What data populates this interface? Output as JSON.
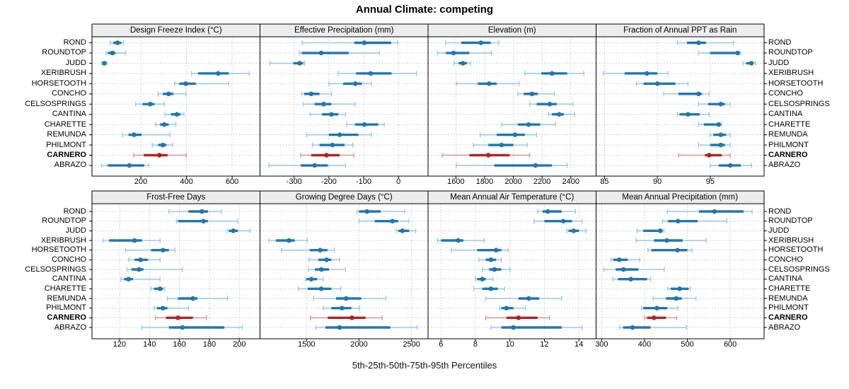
{
  "title": "Annual Climate: competing",
  "caption": "5th-25th-50th-75th-95th Percentiles",
  "colors": {
    "blue": "#1f77b4",
    "blue_light": "#9ec9e2",
    "red": "#b22222",
    "red_light": "#dc9c96",
    "panel_header_bg": "#ececec",
    "panel_border": "#000000",
    "grid": "#c9c9c9",
    "text": "#000000"
  },
  "sites": [
    "ROND",
    "ROUNDTOP",
    "JUDD",
    "XERIBRUSH",
    "HORSETOOTH",
    "CONCHO",
    "CELSOSPRINGS",
    "CANTINA",
    "CHARETTE",
    "REMUNDA",
    "PHILMONT",
    "CARNERO",
    "ABRAZO"
  ],
  "highlight_site": "CARNERO",
  "chart_data": {
    "type": "segplot-percentiles",
    "title": "Annual Climate: competing",
    "percentile_labels": [
      "5th",
      "25th",
      "50th",
      "75th",
      "95th"
    ],
    "legend": "none",
    "grid": "dotted",
    "panels": [
      {
        "title": "Design Freeze Index (°C)",
        "row": 0,
        "col": 0,
        "xlim": [
          -14,
          722
        ],
        "ticks": [
          200,
          400,
          600
        ],
        "values": {
          "ROND": [
            67,
            79,
            98,
            115,
            124
          ],
          "ROUNDTOP": [
            48,
            55,
            75,
            89,
            133
          ],
          "JUDD": [
            29,
            34,
            40,
            47,
            52
          ],
          "XERIBRUSH": [
            422,
            451,
            539,
            585,
            675
          ],
          "HORSETOOTH": [
            348,
            368,
            397,
            441,
            585
          ],
          "CONCHO": [
            275,
            296,
            322,
            343,
            399
          ],
          "CELSOSPRINGS": [
            177,
            208,
            241,
            260,
            303
          ],
          "CANTINA": [
            306,
            332,
            358,
            374,
            389
          ],
          "CHARETTE": [
            265,
            284,
            303,
            322,
            353
          ],
          "REMUNDA": [
            120,
            146,
            170,
            203,
            327
          ],
          "PHILMONT": [
            250,
            275,
            296,
            312,
            340
          ],
          "CARNERO": [
            169,
            213,
            281,
            317,
            399
          ],
          "ABRAZO": [
            28,
            55,
            150,
            215,
            235
          ]
        }
      },
      {
        "title": "Effective Precipitation (mm)",
        "row": 0,
        "col": 1,
        "xlim": [
          -398,
          85
        ],
        "ticks": [
          -300,
          -200,
          -100,
          0
        ],
        "values": {
          "ROND": [
            -277,
            -127,
            -98,
            -21,
            -3
          ],
          "ROUNDTOP": [
            -285,
            -278,
            -222,
            -143,
            -55
          ],
          "JUDD": [
            -369,
            -302,
            -284,
            -274,
            -270
          ],
          "XERIBRUSH": [
            -173,
            -122,
            -80,
            -20,
            52
          ],
          "HORSETOOTH": [
            -200,
            -159,
            -124,
            -105,
            -78
          ],
          "CONCHO": [
            -278,
            -271,
            -251,
            -227,
            -193
          ],
          "CELSOSPRINGS": [
            -274,
            -241,
            -215,
            -193,
            -125
          ],
          "CANTINA": [
            -254,
            -220,
            -193,
            -173,
            -152
          ],
          "CHARETTE": [
            -149,
            -125,
            -98,
            -58,
            -41
          ],
          "REMUNDA": [
            -264,
            -200,
            -169,
            -115,
            -78
          ],
          "PHILMONT": [
            -247,
            -227,
            -190,
            -155,
            -131
          ],
          "CARNERO": [
            -281,
            -251,
            -207,
            -169,
            -128
          ],
          "ABRAZO": [
            -372,
            -281,
            -241,
            -203,
            -152
          ]
        }
      },
      {
        "title": "Elevation (m)",
        "row": 0,
        "col": 2,
        "xlim": [
          1406,
          2576
        ],
        "ticks": [
          1600,
          1800,
          2000,
          2200,
          2400
        ],
        "values": {
          "ROND": [
            1528,
            1637,
            1775,
            1842,
            1898
          ],
          "ROUNDTOP": [
            1472,
            1530,
            1583,
            1694,
            1848
          ],
          "JUDD": [
            1586,
            1619,
            1649,
            1677,
            1702
          ],
          "XERIBRUSH": [
            2080,
            2195,
            2269,
            2375,
            2490
          ],
          "HORSETOOTH": [
            1603,
            1752,
            1831,
            1884,
            2039
          ],
          "CONCHO": [
            2031,
            2072,
            2130,
            2170,
            2286
          ],
          "CELSOSPRINGS": [
            2113,
            2162,
            2253,
            2302,
            2417
          ],
          "CANTINA": [
            2246,
            2269,
            2319,
            2352,
            2426
          ],
          "CHARETTE": [
            1918,
            2031,
            2106,
            2187,
            2294
          ],
          "REMUNDA": [
            1770,
            1884,
            2012,
            2080,
            2162
          ],
          "PHILMONT": [
            1721,
            1826,
            1918,
            2000,
            2096
          ],
          "CARNERO": [
            1505,
            1694,
            1826,
            1975,
            2113
          ],
          "ABRAZO": [
            1603,
            1867,
            2154,
            2269,
            2375
          ]
        }
      },
      {
        "title": "Fraction of Annual PPT as Rain",
        "row": 0,
        "col": 3,
        "xlim": [
          84.2,
          100.1
        ],
        "ticks": [
          85,
          90,
          95
        ],
        "values": {
          "ROND": [
            91.9,
            92.8,
            93.9,
            94.6,
            97.2
          ],
          "ROUNDTOP": [
            93.9,
            95.0,
            97.6,
            97.8,
            97.9
          ],
          "JUDD": [
            98.1,
            98.4,
            98.9,
            99.1,
            99.3
          ],
          "XERIBRUSH": [
            84.9,
            86.9,
            89.0,
            90.0,
            91.0
          ],
          "HORSETOOTH": [
            88.0,
            88.7,
            90.0,
            91.7,
            92.9
          ],
          "CONCHO": [
            90.6,
            92.0,
            93.9,
            94.2,
            94.9
          ],
          "CELSOSPRINGS": [
            93.9,
            94.8,
            96.0,
            96.4,
            96.9
          ],
          "CANTINA": [
            91.9,
            92.1,
            92.9,
            94.0,
            94.9
          ],
          "CHARETTE": [
            93.9,
            94.4,
            95.8,
            96.0,
            96.1
          ],
          "REMUNDA": [
            95.0,
            95.3,
            96.0,
            96.5,
            96.9
          ],
          "PHILMONT": [
            93.9,
            95.0,
            96.0,
            96.4,
            96.9
          ],
          "CARNERO": [
            92.0,
            94.5,
            94.9,
            96.1,
            96.9
          ],
          "ABRAZO": [
            95.0,
            95.8,
            96.9,
            97.9,
            98.9
          ]
        }
      },
      {
        "title": "Frost-Free Days",
        "row": 1,
        "col": 0,
        "xlim": [
          101.6,
          213.8
        ],
        "ticks": [
          120,
          140,
          160,
          180,
          200
        ],
        "values": {
          "ROND": [
            153,
            166,
            175,
            179,
            188
          ],
          "ROUNDTOP": [
            158,
            159,
            176,
            179,
            199
          ],
          "JUDD": [
            192,
            193,
            196,
            199,
            207
          ],
          "XERIBRUSH": [
            109,
            113,
            130,
            135,
            147
          ],
          "HORSETOOTH": [
            124,
            141,
            149,
            153,
            157
          ],
          "CONCHO": [
            126,
            130,
            134,
            139,
            147
          ],
          "CELSOSPRINGS": [
            125,
            128,
            133,
            136,
            162
          ],
          "CANTINA": [
            121,
            123,
            126,
            129,
            147
          ],
          "CHARETTE": [
            141,
            143,
            147,
            149,
            150
          ],
          "REMUNDA": [
            152,
            159,
            169,
            172,
            192
          ],
          "PHILMONT": [
            143,
            145,
            149,
            152,
            166
          ],
          "CARNERO": [
            144,
            151,
            159,
            169,
            178
          ],
          "ABRAZO": [
            135,
            153,
            162,
            190,
            202
          ]
        }
      },
      {
        "title": "Growing Degree Days (°C)",
        "row": 1,
        "col": 1,
        "xlim": [
          1057,
          2657
        ],
        "ticks": [
          1500,
          2000,
          2500
        ],
        "values": {
          "ROND": [
            1982,
            2000,
            2076,
            2206,
            2436
          ],
          "ROUNDTOP": [
            2000,
            2150,
            2319,
            2374,
            2472
          ],
          "JUDD": [
            2353,
            2374,
            2414,
            2477,
            2539
          ],
          "XERIBRUSH": [
            1141,
            1208,
            1332,
            1388,
            1507
          ],
          "HORSETOOTH": [
            1260,
            1530,
            1630,
            1698,
            1765
          ],
          "CONCHO": [
            1523,
            1613,
            1691,
            1736,
            1815
          ],
          "CELSOSPRINGS": [
            1518,
            1579,
            1642,
            1714,
            1871
          ],
          "CANTINA": [
            1489,
            1500,
            1545,
            1601,
            1658
          ],
          "CHARETTE": [
            1422,
            1511,
            1640,
            1736,
            1826
          ],
          "REMUNDA": [
            1567,
            1781,
            1877,
            2021,
            2257
          ],
          "PHILMONT": [
            1658,
            1736,
            1837,
            1927,
            2005
          ],
          "CARNERO": [
            1538,
            1702,
            1932,
            2062,
            2219
          ],
          "ABRAZO": [
            1590,
            1680,
            1815,
            2298,
            2554
          ]
        }
      },
      {
        "title": "Mean Annual Air Temperature (°C)",
        "row": 1,
        "col": 2,
        "xlim": [
          5.25,
          15.0
        ],
        "ticks": [
          6,
          8,
          10,
          12,
          14
        ],
        "values": {
          "ROND": [
            11.6,
            11.9,
            12.2,
            13.0,
            13.8
          ],
          "ROUNDTOP": [
            11.4,
            12.0,
            13.1,
            13.6,
            14.2
          ],
          "JUDD": [
            13.3,
            13.4,
            13.7,
            14.0,
            14.4
          ],
          "XERIBRUSH": [
            5.8,
            6.0,
            7.0,
            7.3,
            8.5
          ],
          "HORSETOOTH": [
            6.6,
            8.1,
            9.2,
            9.5,
            9.9
          ],
          "CONCHO": [
            8.2,
            8.6,
            8.9,
            9.2,
            9.5
          ],
          "CELSOSPRINGS": [
            8.4,
            8.8,
            9.1,
            9.5,
            10.0
          ],
          "CANTINA": [
            8.0,
            8.1,
            8.4,
            8.6,
            9.0
          ],
          "CHARETTE": [
            7.9,
            8.4,
            8.9,
            9.3,
            9.7
          ],
          "REMUNDA": [
            8.6,
            10.5,
            11.1,
            11.7,
            13.0
          ],
          "PHILMONT": [
            9.4,
            9.5,
            9.8,
            10.2,
            10.9
          ],
          "CARNERO": [
            8.6,
            9.8,
            10.5,
            11.6,
            12.3
          ],
          "ABRAZO": [
            8.9,
            9.5,
            10.2,
            13.0,
            14.2
          ]
        }
      },
      {
        "title": "Mean Annual Precipitation (mm)",
        "row": 1,
        "col": 3,
        "xlim": [
          287,
          679
        ],
        "ticks": [
          300,
          400,
          500,
          600
        ],
        "values": {
          "ROND": [
            453,
            527,
            563,
            631,
            651
          ],
          "ROUNDTOP": [
            442,
            455,
            478,
            524,
            592
          ],
          "JUDD": [
            383,
            397,
            437,
            441,
            445
          ],
          "XERIBRUSH": [
            380,
            422,
            452,
            489,
            544
          ],
          "HORSETOOTH": [
            408,
            416,
            477,
            500,
            511
          ],
          "CONCHO": [
            322,
            327,
            341,
            361,
            389
          ],
          "CELSOSPRINGS": [
            305,
            333,
            351,
            386,
            446
          ],
          "CANTINA": [
            326,
            338,
            368,
            406,
            414
          ],
          "CHARETTE": [
            454,
            461,
            482,
            503,
            507
          ],
          "REMUNDA": [
            420,
            450,
            474,
            487,
            520
          ],
          "PHILMONT": [
            393,
            397,
            429,
            453,
            478
          ],
          "CARNERO": [
            400,
            406,
            422,
            450,
            475
          ],
          "ABRAZO": [
            341,
            350,
            372,
            414,
            498
          ]
        }
      }
    ]
  }
}
